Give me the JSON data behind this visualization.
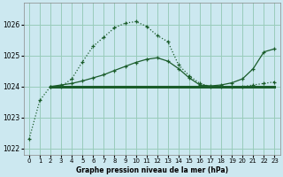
{
  "background_color": "#cce8f0",
  "grid_color": "#99ccbb",
  "line_color": "#1a5c2a",
  "title": "Graphe pression niveau de la mer (hPa)",
  "xlim": [
    -0.5,
    23.5
  ],
  "ylim": [
    1021.8,
    1026.7
  ],
  "yticks": [
    1022,
    1023,
    1024,
    1025,
    1026
  ],
  "xticks": [
    0,
    1,
    2,
    3,
    4,
    5,
    6,
    7,
    8,
    9,
    10,
    11,
    12,
    13,
    14,
    15,
    16,
    17,
    18,
    19,
    20,
    21,
    22,
    23
  ],
  "series1_x": [
    0,
    1,
    2,
    3,
    4,
    5,
    6,
    7,
    8,
    9,
    10,
    11,
    12,
    13,
    14,
    15,
    16,
    17,
    18,
    19,
    20,
    21,
    22,
    23
  ],
  "series1_y": [
    1022.3,
    1023.55,
    1024.0,
    1024.0,
    1024.25,
    1024.8,
    1025.3,
    1025.6,
    1025.9,
    1026.05,
    1026.1,
    1025.95,
    1025.65,
    1025.45,
    1024.7,
    1024.35,
    1024.1,
    1024.0,
    1024.0,
    1024.0,
    1024.0,
    1024.05,
    1024.1,
    1024.15
  ],
  "series2_x": [
    2,
    23
  ],
  "series2_y": [
    1024.0,
    1024.0
  ],
  "series3_x": [
    2,
    3,
    4,
    5,
    6,
    7,
    8,
    9,
    10,
    11,
    12,
    13,
    14,
    15,
    16,
    17,
    18,
    19,
    20,
    21,
    22,
    23
  ],
  "series3_y": [
    1024.0,
    1024.05,
    1024.1,
    1024.18,
    1024.28,
    1024.38,
    1024.52,
    1024.65,
    1024.78,
    1024.88,
    1024.93,
    1024.82,
    1024.58,
    1024.28,
    1024.05,
    1024.02,
    1024.05,
    1024.12,
    1024.25,
    1024.58,
    1025.12,
    1025.22
  ],
  "title_fontsize": 5.5,
  "tick_fontsize": 5.0
}
